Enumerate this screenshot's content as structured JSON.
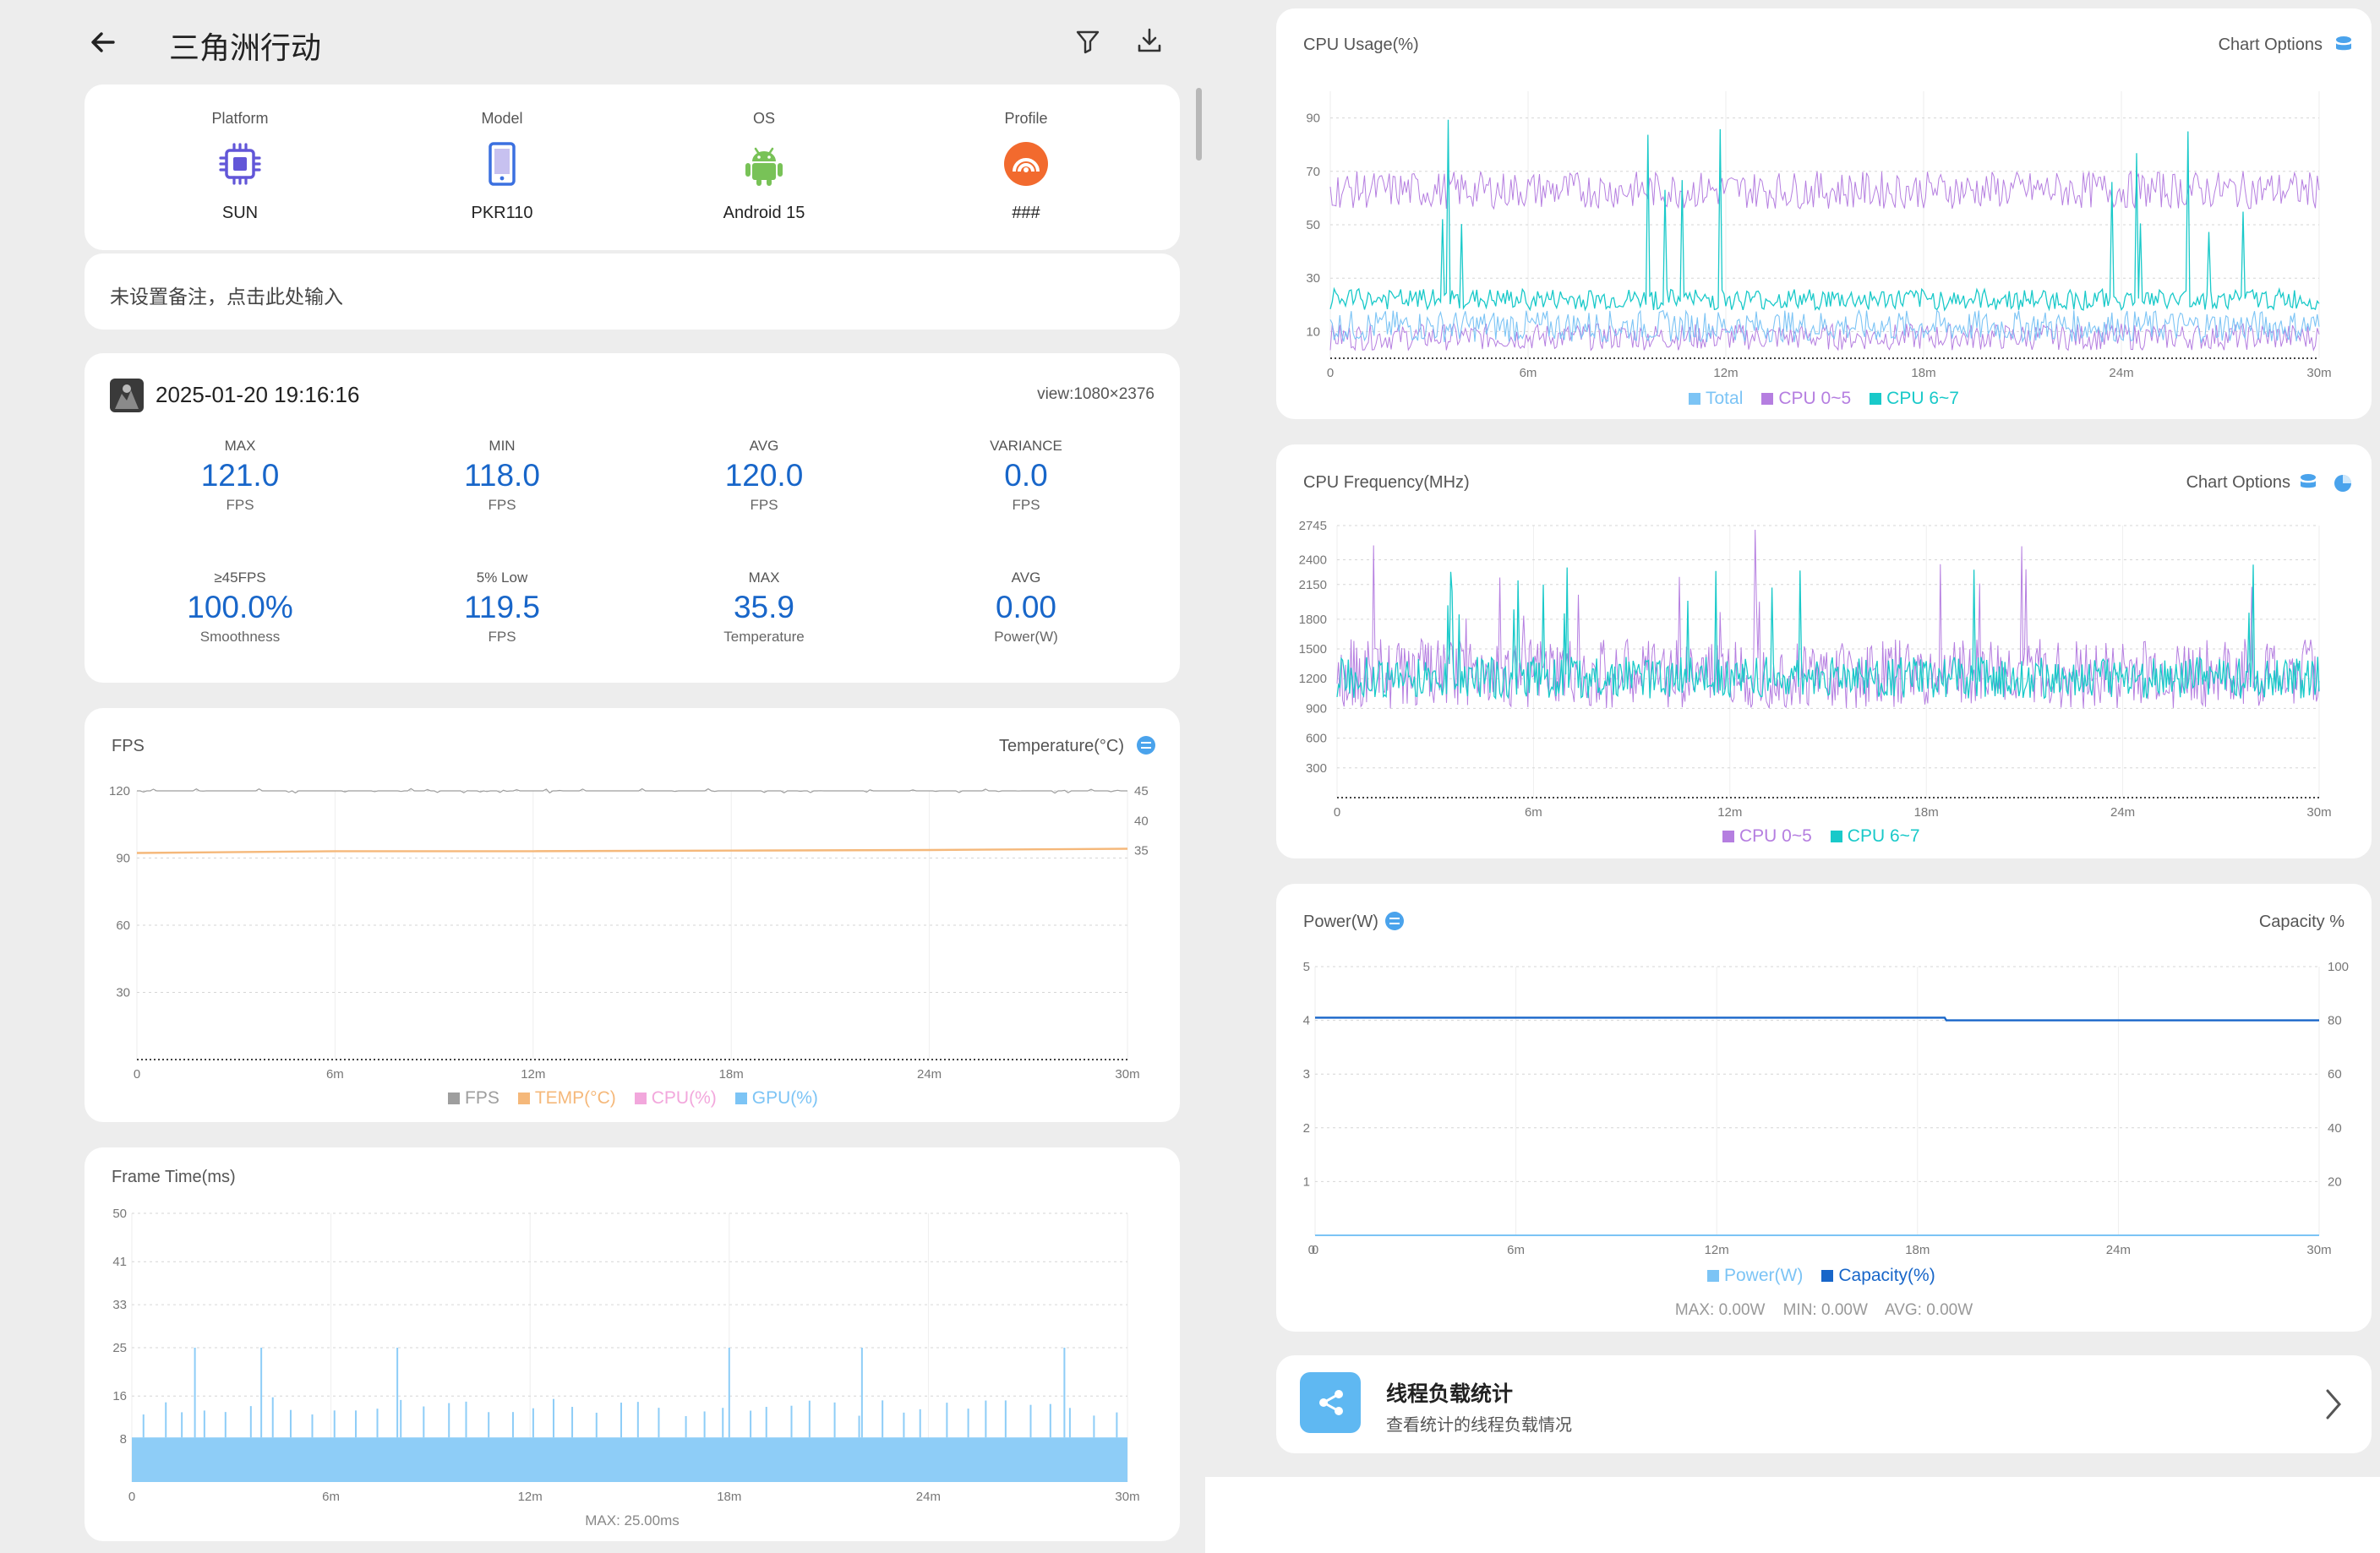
{
  "header": {
    "title": "三角洲行动",
    "back_icon": "arrow-left-icon",
    "filter_icon": "filter-icon",
    "download_icon": "download-icon"
  },
  "device": {
    "items": [
      {
        "label": "Platform",
        "value": "SUN",
        "icon": "chip-icon"
      },
      {
        "label": "Model",
        "value": "PKR110",
        "icon": "phone-icon"
      },
      {
        "label": "OS",
        "value": "Android 15",
        "icon": "android-icon"
      },
      {
        "label": "Profile",
        "value": "###",
        "icon": "profile-icon"
      }
    ]
  },
  "note": {
    "placeholder": "未设置备注，点击此处输入"
  },
  "session": {
    "datetime": "2025-01-20 19:16:16",
    "view": "view:1080×2376",
    "stats": [
      {
        "title": "MAX",
        "value": "121.0",
        "unit": "FPS"
      },
      {
        "title": "MIN",
        "value": "118.0",
        "unit": "FPS"
      },
      {
        "title": "AVG",
        "value": "120.0",
        "unit": "FPS"
      },
      {
        "title": "VARIANCE",
        "value": "0.0",
        "unit": "FPS"
      },
      {
        "title": "≥45FPS",
        "value": "100.0%",
        "unit": "Smoothness"
      },
      {
        "title": "5% Low",
        "value": "119.5",
        "unit": "FPS"
      },
      {
        "title": "MAX",
        "value": "35.9",
        "unit": "Temperature"
      },
      {
        "title": "AVG",
        "value": "0.00",
        "unit": "Power(W)"
      }
    ]
  },
  "fps_chart": {
    "title": "FPS",
    "right_title": "Temperature(°C)",
    "legend": [
      {
        "name": "FPS",
        "color": "#9e9e9e"
      },
      {
        "name": "TEMP(°C)",
        "color": "#f5b87a"
      },
      {
        "name": "CPU(%)",
        "color": "#f2a7dc"
      },
      {
        "name": "GPU(%)",
        "color": "#7cc4f5"
      }
    ]
  },
  "frame_chart": {
    "title": "Frame Time(ms)",
    "footer": "MAX: 25.00ms"
  },
  "cpu_usage": {
    "title": "CPU Usage(%)",
    "options": "Chart Options",
    "legend": [
      {
        "name": "Total",
        "color": "#7cc4f5"
      },
      {
        "name": "CPU 0~5",
        "color": "#b57ee0"
      },
      {
        "name": "CPU 6~7",
        "color": "#19c9c9"
      }
    ]
  },
  "cpu_freq": {
    "title": "CPU Frequency(MHz)",
    "options": "Chart Options",
    "legend": [
      {
        "name": "CPU 0~5",
        "color": "#b57ee0"
      },
      {
        "name": "CPU 6~7",
        "color": "#19c9c9"
      }
    ]
  },
  "power": {
    "title": "Power(W)",
    "right_title": "Capacity %",
    "legend": [
      {
        "name": "Power(W)",
        "color": "#7cc4f5"
      },
      {
        "name": "Capacity(%)",
        "color": "#1866c9"
      }
    ],
    "footer": "MAX: 0.00W    MIN: 0.00W    AVG: 0.00W"
  },
  "thread": {
    "title": "线程负载统计",
    "subtitle": "查看统计的线程负载情况",
    "icon": "share-icon"
  },
  "chart_data": [
    {
      "type": "line",
      "title": "FPS",
      "x": [
        "0",
        "6m",
        "12m",
        "18m",
        "24m",
        "30m"
      ],
      "y_ticks": [
        30,
        60,
        90,
        120
      ],
      "y2_ticks": [
        35,
        40,
        45
      ],
      "ylim": [
        0,
        120
      ],
      "y2lim": [
        0,
        45
      ],
      "series": [
        {
          "name": "FPS",
          "values": [
            120,
            120,
            120,
            120,
            120,
            120
          ]
        },
        {
          "name": "TEMP(°C)",
          "axis": "right",
          "values": [
            34.6,
            34.9,
            34.9,
            35.0,
            35.1,
            35.3
          ]
        }
      ]
    },
    {
      "type": "bar",
      "title": "Frame Time(ms)",
      "x": [
        "0",
        "6m",
        "12m",
        "18m",
        "24m",
        "30m"
      ],
      "y_ticks": [
        8,
        16,
        25,
        33,
        41,
        50
      ],
      "ylim": [
        0,
        50
      ],
      "baseline": 8.3,
      "spikes_x_min": [
        1.9,
        3.9,
        8.0,
        18.0,
        22.0,
        28.1
      ],
      "spikes_value": 25
    },
    {
      "type": "line",
      "title": "CPU Usage(%)",
      "x": [
        "0",
        "6m",
        "12m",
        "18m",
        "24m",
        "30m"
      ],
      "y_ticks": [
        10,
        30,
        50,
        70,
        90
      ],
      "ylim": [
        0,
        100
      ],
      "series": [
        {
          "name": "CPU 0~5",
          "approx_level": 63
        },
        {
          "name": "CPU 6~7",
          "approx_level": 22
        },
        {
          "name": "Total",
          "approx_level": 12
        }
      ]
    },
    {
      "type": "line",
      "title": "CPU Frequency(MHz)",
      "x": [
        "0",
        "6m",
        "12m",
        "18m",
        "24m",
        "30m"
      ],
      "y_ticks": [
        300,
        600,
        900,
        1200,
        1500,
        1800,
        2150,
        2400,
        2745
      ],
      "ylim": [
        0,
        2745
      ],
      "series": [
        {
          "name": "CPU 0~5",
          "approx_level": 1300
        },
        {
          "name": "CPU 6~7",
          "approx_level": 1200
        }
      ]
    },
    {
      "type": "line",
      "title": "Power(W)",
      "x": [
        "0",
        "6m",
        "12m",
        "18m",
        "24m",
        "30m"
      ],
      "y_ticks": [
        1,
        2,
        3,
        4,
        5
      ],
      "y2_ticks": [
        20,
        40,
        60,
        80,
        100
      ],
      "ylim": [
        0,
        5
      ],
      "y2lim": [
        0,
        100
      ],
      "series": [
        {
          "name": "Power(W)",
          "values": [
            0,
            0,
            0,
            0,
            0,
            0
          ]
        },
        {
          "name": "Capacity(%)",
          "axis": "right",
          "values": [
            81,
            81,
            81,
            81,
            80,
            80
          ]
        }
      ]
    }
  ]
}
